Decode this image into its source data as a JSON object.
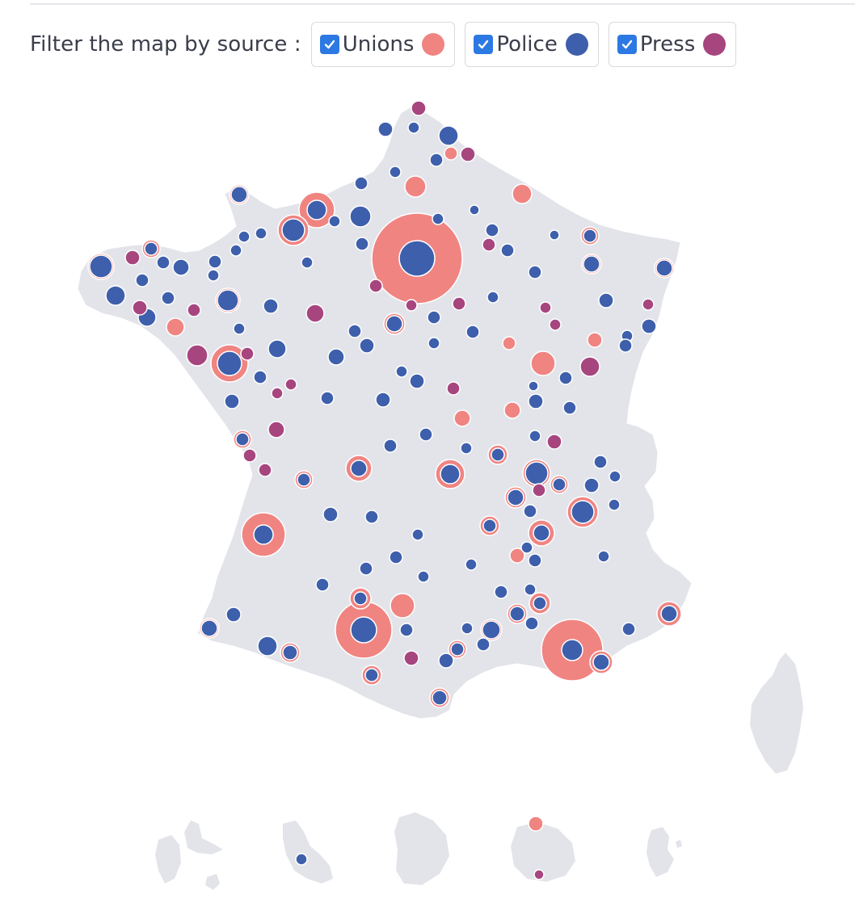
{
  "filter": {
    "label": "Filter the map by source :",
    "sources": [
      {
        "label": "Unions",
        "color": "#f08481",
        "checked": true
      },
      {
        "label": "Police",
        "color": "#3e5fac",
        "checked": true
      },
      {
        "label": "Press",
        "color": "#a7457f",
        "checked": true
      }
    ]
  },
  "map": {
    "land_color": "#e3e4ea",
    "border_color": "#ffffff",
    "regions": [
      "metropolitan-france",
      "corsica",
      "guadeloupe",
      "martinique",
      "guyane",
      "reunion",
      "mayotte"
    ]
  }
}
